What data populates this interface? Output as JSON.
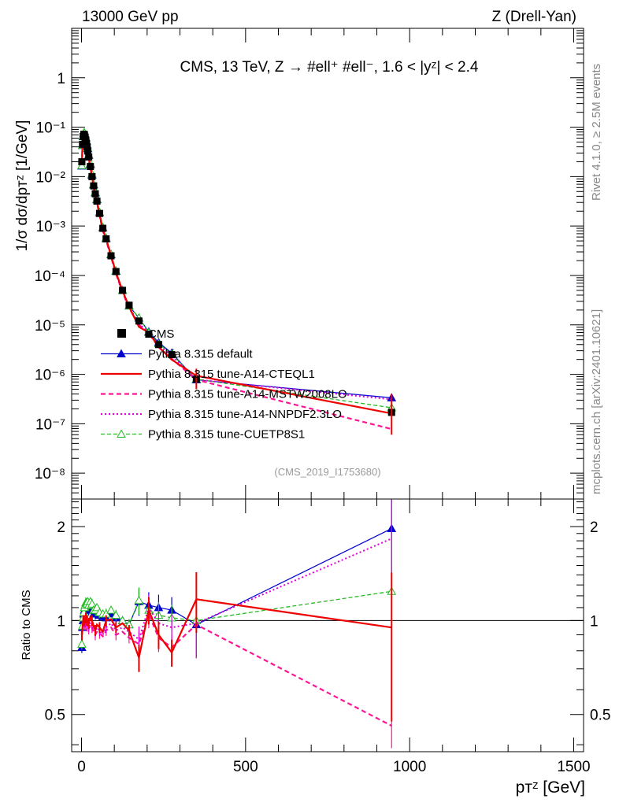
{
  "header": {
    "left": "13000 GeV pp",
    "right": "Z (Drell-Yan)",
    "plot_title": "CMS, 13 TeV, Z →  #ell⁺ #ell⁻, 1.6 < |yᶻ| < 2.4"
  },
  "side": {
    "rivet": "Rivet 4.1.0, ≥ 2.5M events",
    "mcplots": "mcplots.cern.ch [arXiv:2401.10621]"
  },
  "analysis_id": "(CMS_2019_I1753680)",
  "axes": {
    "main_ylabel": "1/σ dσ/dpᴛᶻ [1/GeV]",
    "ratio_ylabel": "Ratio to CMS",
    "xlabel": "pᴛᶻ [GeV]",
    "main_yticks": [
      "10⁻⁸",
      "10⁻⁷",
      "10⁻⁶",
      "10⁻⁵",
      "10⁻⁴",
      "10⁻³",
      "10⁻²",
      "10⁻¹",
      "1"
    ],
    "ratio_yticks": [
      "0.5",
      "1",
      "2"
    ],
    "xticks": [
      "0",
      "500",
      "1000",
      "1500"
    ]
  },
  "legend": [
    "CMS",
    "Pythia 8.315 default",
    "Pythia 8.315 tune-A14-CTEQL1",
    "Pythia 8.315 tune-A14-MSTW2008LO",
    "Pythia 8.315 tune-A14-NNPDF2.3LO",
    "Pythia 8.315 tune-CUETP8S1"
  ],
  "chart_data": {
    "type": "line",
    "title": "CMS, 13 TeV, Z → ll, 1.6 < |y^Z| < 2.4",
    "xlabel": "p_T^Z [GeV]",
    "ylabel": "1/sigma dsigma/dp_T^Z [1/GeV]",
    "ratio_ylabel": "Ratio to CMS",
    "xlim": [
      -30,
      1530
    ],
    "ylim": [
      3e-09,
      10
    ],
    "ratio_ylim": [
      0.38,
      2.45
    ],
    "yscale": "log",
    "x": [
      1,
      3,
      5,
      7,
      9,
      11,
      13,
      15,
      17,
      19,
      22,
      27,
      32,
      37,
      42,
      47,
      55,
      65,
      75,
      90,
      105,
      125,
      145,
      175,
      205,
      235,
      275,
      350,
      945
    ],
    "cms": [
      0.02,
      0.045,
      0.065,
      0.072,
      0.07,
      0.063,
      0.055,
      0.047,
      0.04,
      0.033,
      0.025,
      0.016,
      0.01,
      0.0065,
      0.0045,
      0.0032,
      0.0018,
      0.0009,
      0.00055,
      0.00025,
      0.00012,
      5e-05,
      2.5e-05,
      1.2e-05,
      6.5e-06,
      4e-06,
      2.5e-06,
      8e-07,
      1.7e-07
    ],
    "series": [
      {
        "name": "Pythia 8.315 default",
        "color": "#0000cc",
        "ratio": [
          0.82,
          0.95,
          1.0,
          1.05,
          1.08,
          1.1,
          1.1,
          1.1,
          1.09,
          1.12,
          1.08,
          1.1,
          1.08,
          1.05,
          1.05,
          1.07,
          1.04,
          1.03,
          1.02,
          1.05,
          1.02,
          1.0,
          0.97,
          1.15,
          1.12,
          1.1,
          1.08,
          0.97,
          1.97
        ]
      },
      {
        "name": "Pythia 8.315 tune-A14-CTEQL1",
        "color": "#ee0000",
        "ratio": [
          0.9,
          0.95,
          1.0,
          1.02,
          1.0,
          1.0,
          1.02,
          1.04,
          1.0,
          0.99,
          0.98,
          1.02,
          1.0,
          0.96,
          0.93,
          0.97,
          0.95,
          0.92,
          1.0,
          1.01,
          0.95,
          0.98,
          0.93,
          0.76,
          1.08,
          0.9,
          0.79,
          1.17,
          0.95
        ]
      },
      {
        "name": "Pythia 8.315 tune-A14-MSTW2008LO",
        "color": "#ff1493",
        "ratio": [
          0.9,
          0.93,
          0.97,
          0.99,
          0.97,
          0.96,
          0.97,
          1.0,
          0.96,
          0.95,
          0.94,
          0.97,
          0.95,
          0.92,
          0.9,
          0.92,
          0.91,
          0.89,
          0.93,
          0.95,
          0.9,
          0.92,
          0.88,
          0.84,
          1.05,
          0.88,
          0.82,
          0.97,
          0.46
        ]
      },
      {
        "name": "Pythia 8.315 tune-A14-NNPDF2.3LO",
        "color": "#dd00dd",
        "ratio": [
          0.9,
          0.94,
          0.98,
          1.0,
          0.99,
          0.98,
          0.99,
          1.01,
          0.98,
          0.97,
          0.96,
          0.99,
          0.97,
          0.94,
          0.92,
          0.95,
          0.93,
          0.9,
          0.95,
          0.98,
          0.93,
          0.95,
          0.92,
          0.87,
          1.1,
          0.98,
          0.95,
          0.98,
          1.83
        ]
      },
      {
        "name": "Pythia 8.315 tune-CUETP8S1",
        "color": "#22bb22",
        "ratio": [
          0.84,
          0.96,
          1.02,
          1.06,
          1.1,
          1.12,
          1.14,
          1.14,
          1.13,
          1.15,
          1.12,
          1.15,
          1.13,
          1.08,
          1.08,
          1.1,
          1.06,
          1.05,
          1.05,
          1.08,
          1.04,
          1.0,
          0.97,
          1.16,
          1.08,
          1.04,
          1.02,
          1.0,
          1.24
        ]
      }
    ]
  }
}
